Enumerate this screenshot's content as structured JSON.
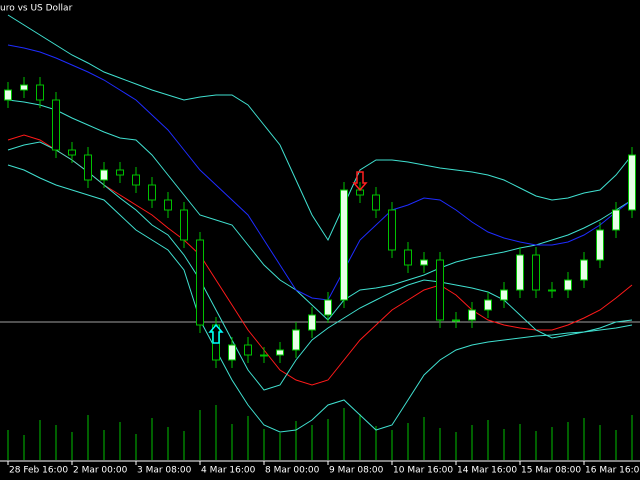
{
  "chart_data": {
    "type": "candlestick",
    "title": "uro vs US Dollar",
    "categories": [
      "28 Feb 16:00",
      null,
      null,
      null,
      "2 Mar 00:00",
      null,
      null,
      null,
      "3 Mar 08:00",
      null,
      null,
      null,
      "4 Mar 16:00",
      null,
      null,
      null,
      "8 Mar 00:00",
      null,
      null,
      null,
      "9 Mar 08:00",
      null,
      null,
      null,
      "10 Mar 16:00",
      null,
      null,
      null,
      "14 Mar 16:00",
      null,
      null,
      null,
      "15 Mar 08:00",
      null,
      null,
      null,
      "16 Mar 16:00",
      null,
      null,
      null
    ],
    "open": [
      380,
      390,
      395,
      380,
      330,
      325,
      300,
      310,
      305,
      295,
      280,
      270,
      240,
      155,
      120,
      135,
      125,
      125,
      130,
      150,
      165,
      180,
      290,
      285,
      270,
      230,
      215,
      220,
      160,
      160,
      170,
      180,
      190,
      225,
      190,
      190,
      200,
      220,
      250,
      270
    ],
    "high": [
      398,
      403,
      403,
      388,
      338,
      333,
      318,
      318,
      313,
      303,
      288,
      278,
      248,
      163,
      143,
      143,
      133,
      138,
      158,
      173,
      188,
      298,
      298,
      293,
      278,
      238,
      228,
      228,
      168,
      178,
      188,
      198,
      233,
      233,
      198,
      208,
      228,
      258,
      278,
      333
    ],
    "low": [
      372,
      382,
      372,
      322,
      317,
      292,
      292,
      297,
      287,
      272,
      262,
      232,
      147,
      112,
      112,
      117,
      117,
      117,
      122,
      142,
      157,
      172,
      277,
      262,
      222,
      207,
      207,
      152,
      152,
      152,
      162,
      172,
      182,
      182,
      182,
      182,
      192,
      212,
      242,
      262
    ],
    "close": [
      390,
      395,
      380,
      330,
      325,
      300,
      310,
      305,
      295,
      280,
      270,
      240,
      155,
      120,
      135,
      125,
      125,
      130,
      150,
      165,
      180,
      290,
      285,
      270,
      230,
      215,
      220,
      160,
      160,
      170,
      180,
      190,
      225,
      190,
      190,
      200,
      220,
      250,
      270,
      325
    ],
    "up_color": "#e6ffe6",
    "down_color": "#000000",
    "wick_color": "#00c000",
    "ylim": [
      0,
      480
    ],
    "overlays": [
      {
        "color": "#40e0d0",
        "values": [
          465,
          455,
          445,
          435,
          425,
          417,
          408,
          402,
          396,
          390,
          385,
          380,
          383,
          385,
          385,
          375,
          355,
          335,
          300,
          265,
          240,
          275,
          310,
          320,
          320,
          318,
          315,
          312,
          310,
          308,
          305,
          300,
          292,
          284,
          280,
          282,
          287,
          290,
          305,
          325
        ]
      },
      {
        "color": "#40e0d0",
        "values": [
          380,
          378,
          375,
          370,
          362,
          355,
          348,
          342,
          340,
          325,
          305,
          285,
          265,
          260,
          255,
          235,
          215,
          200,
          190,
          175,
          160,
          180,
          190,
          192,
          195,
          200,
          205,
          212,
          218,
          222,
          225,
          228,
          232,
          235,
          240,
          245,
          252,
          260,
          270,
          280
        ]
      },
      {
        "color": "#1e2cff",
        "values": [
          435,
          432,
          428,
          422,
          415,
          408,
          400,
          390,
          380,
          365,
          350,
          330,
          310,
          295,
          280,
          265,
          240,
          215,
          190,
          182,
          180,
          210,
          240,
          255,
          270,
          275,
          282,
          280,
          270,
          258,
          248,
          242,
          238,
          235,
          235,
          238,
          245,
          255,
          268,
          280
        ]
      },
      {
        "color": "#ff1a1a",
        "values": [
          340,
          345,
          340,
          330,
          320,
          308,
          295,
          285,
          275,
          265,
          252,
          240,
          225,
          200,
          175,
          150,
          130,
          110,
          100,
          95,
          100,
          120,
          140,
          155,
          170,
          180,
          190,
          195,
          185,
          170,
          160,
          155,
          152,
          150,
          150,
          155,
          162,
          170,
          182,
          195
        ]
      },
      {
        "color": "#40e0d0",
        "values": [
          330,
          335,
          338,
          330,
          320,
          308,
          295,
          282,
          270,
          255,
          245,
          225,
          200,
          170,
          140,
          110,
          90,
          95,
          120,
          140,
          152,
          162,
          172,
          180,
          188,
          195,
          200,
          198,
          195,
          192,
          188,
          180,
          165,
          150,
          142,
          145,
          148,
          152,
          158,
          160
        ]
      },
      {
        "color": "#40e0d0",
        "values": [
          315,
          310,
          302,
          295,
          290,
          285,
          280,
          265,
          250,
          240,
          230,
          210,
          160,
          130,
          100,
          75,
          55,
          48,
          50,
          60,
          75,
          80,
          65,
          50,
          55,
          80,
          105,
          120,
          130,
          135,
          138,
          140,
          142,
          144,
          145,
          147,
          148,
          150,
          152,
          155
        ]
      }
    ],
    "level": 158,
    "level_color": "#a0a0a0",
    "signals": [
      {
        "index": 13,
        "direction": "up",
        "value": 145,
        "color": "#00ffff"
      },
      {
        "index": 22,
        "direction": "down",
        "value": 300,
        "color": "#ff2020"
      }
    ],
    "volume": {
      "color": "#00c000",
      "ylim": [
        0,
        100
      ],
      "values": [
        30,
        25,
        40,
        35,
        28,
        45,
        30,
        38,
        26,
        42,
        33,
        29,
        50,
        55,
        36,
        44,
        31,
        27,
        39,
        35,
        41,
        52,
        46,
        34,
        30,
        37,
        43,
        32,
        28,
        35,
        40,
        31,
        36,
        29,
        33,
        38,
        42,
        35,
        30,
        45
      ]
    }
  }
}
